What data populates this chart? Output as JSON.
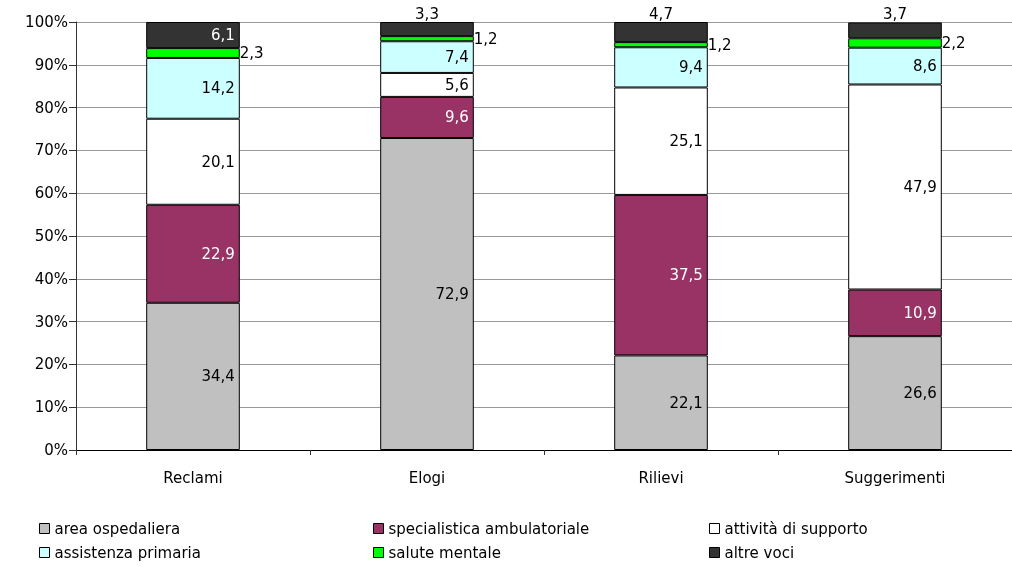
{
  "chart_data": {
    "type": "bar",
    "categories": [
      "Reclami",
      "Elogi",
      "Rilievi",
      "Suggerimenti"
    ],
    "stacked": true,
    "series": [
      {
        "name": "area ospedaliera",
        "color": "#c0c0c0",
        "values": [
          34.4,
          72.9,
          22.1,
          26.6
        ],
        "value_labels": [
          "34,4",
          "72,9",
          "22,1",
          "26,6"
        ]
      },
      {
        "name": "specialistica ambulatoriale",
        "color": "#993366",
        "values": [
          22.9,
          9.6,
          37.5,
          10.9
        ],
        "value_labels": [
          "22,9",
          "9,6",
          "37,5",
          "10,9"
        ]
      },
      {
        "name": "attività di supporto",
        "color": "#ffffff",
        "values": [
          20.1,
          5.6,
          25.1,
          47.9
        ],
        "value_labels": [
          "20,1",
          "5,6",
          "25,1",
          "47,9"
        ]
      },
      {
        "name": "assistenza primaria",
        "color": "#ccffff",
        "values": [
          14.2,
          7.4,
          9.4,
          8.6
        ],
        "value_labels": [
          "14,2",
          "7,4",
          "9,4",
          "8,6"
        ]
      },
      {
        "name": "salute mentale",
        "color": "#00ff00",
        "values": [
          2.3,
          1.2,
          1.2,
          2.2
        ],
        "value_labels": [
          "2,3",
          "1,2",
          "1,2",
          "2,2"
        ]
      },
      {
        "name": "altre voci",
        "color": "#333333",
        "values": [
          6.1,
          3.3,
          4.7,
          3.7
        ],
        "value_labels": [
          "6,1",
          "3,3",
          "4,7",
          "3,7"
        ]
      }
    ],
    "ylim": [
      0,
      100
    ],
    "yticks": [
      {
        "value": 0,
        "label": "0%"
      },
      {
        "value": 10,
        "label": "10%"
      },
      {
        "value": 20,
        "label": "20%"
      },
      {
        "value": 30,
        "label": "30%"
      },
      {
        "value": 40,
        "label": "40%"
      },
      {
        "value": 50,
        "label": "50%"
      },
      {
        "value": 60,
        "label": "60%"
      },
      {
        "value": 70,
        "label": "70%"
      },
      {
        "value": 80,
        "label": "80%"
      },
      {
        "value": 90,
        "label": "90%"
      },
      {
        "value": 100,
        "label": "100%"
      }
    ],
    "grid": "y",
    "legend": "bottom"
  }
}
